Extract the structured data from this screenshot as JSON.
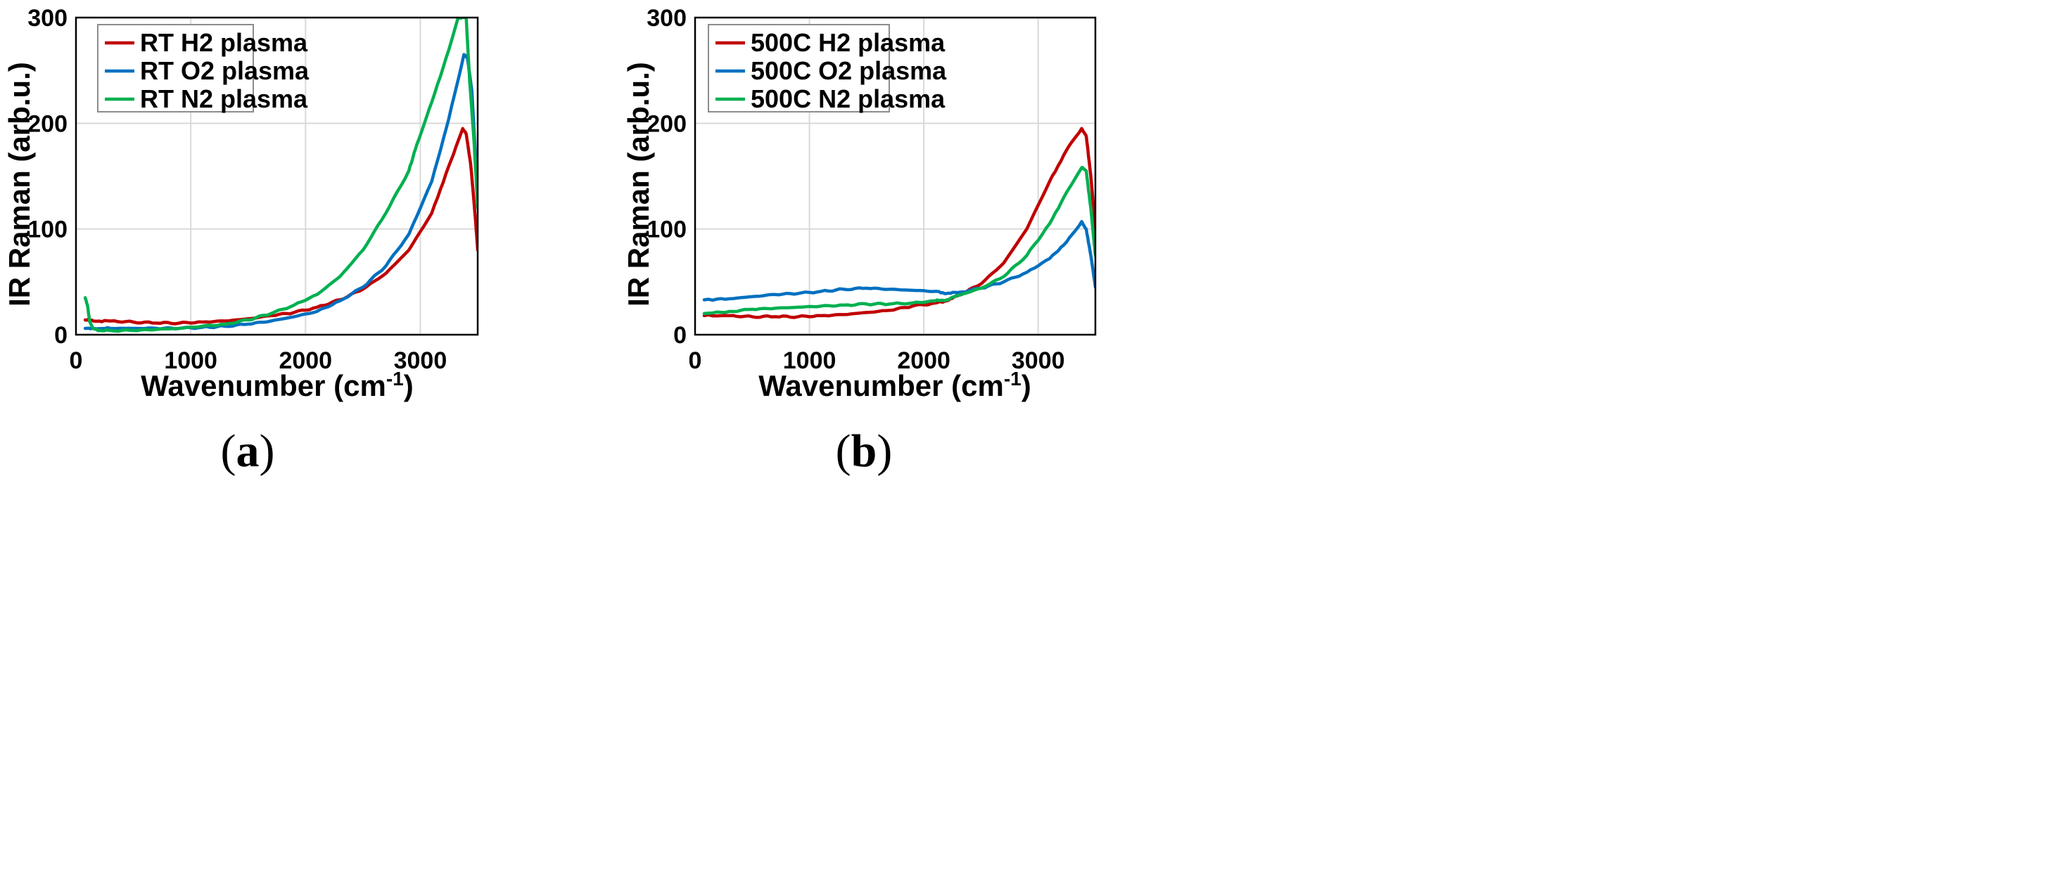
{
  "colors": {
    "h2": "#c00000",
    "o2": "#0070c0",
    "n2": "#00b050"
  },
  "chart_data": [
    {
      "type": "line",
      "panel_label": "a",
      "xlabel": "Wavenumber (cm",
      "xlabel_sup": "-1",
      "xlabel_close": ")",
      "ylabel": "IR Raman (arb.u.)",
      "xlim": [
        0,
        3500
      ],
      "ylim": [
        0,
        300
      ],
      "xticks": [
        0,
        1000,
        2000,
        3000
      ],
      "yticks": [
        0,
        100,
        200,
        300
      ],
      "grid": true,
      "legend_position": "top-left",
      "series": [
        {
          "name": "RT H2 plasma",
          "color_key": "h2",
          "x": [
            80,
            150,
            300,
            500,
            700,
            900,
            1100,
            1300,
            1500,
            1700,
            1900,
            2100,
            2300,
            2500,
            2700,
            2900,
            3100,
            3250,
            3370,
            3400,
            3440,
            3480,
            3500
          ],
          "y": [
            14,
            13,
            13,
            12,
            11,
            11,
            12,
            13,
            15,
            18,
            21,
            26,
            33,
            43,
            58,
            80,
            115,
            160,
            195,
            190,
            160,
            110,
            80
          ]
        },
        {
          "name": "RT O2 plasma",
          "color_key": "o2",
          "x": [
            80,
            150,
            300,
            500,
            700,
            900,
            1100,
            1300,
            1500,
            1700,
            1900,
            2100,
            2300,
            2500,
            2700,
            2900,
            3100,
            3250,
            3380,
            3410,
            3450,
            3490,
            3500
          ],
          "y": [
            6,
            6,
            6,
            6,
            6,
            6,
            7,
            8,
            10,
            13,
            17,
            22,
            32,
            45,
            65,
            95,
            145,
            205,
            265,
            262,
            230,
            150,
            130
          ]
        },
        {
          "name": "RT N2 plasma",
          "color_key": "n2",
          "x": [
            80,
            100,
            120,
            150,
            200,
            300,
            500,
            700,
            900,
            1100,
            1300,
            1500,
            1700,
            1900,
            2100,
            2300,
            2500,
            2700,
            2900,
            2970,
            3100,
            3250,
            3330,
            3360,
            3400,
            3430,
            3470,
            3500
          ],
          "y": [
            35,
            28,
            12,
            6,
            4,
            4,
            4,
            5,
            6,
            8,
            10,
            14,
            20,
            28,
            38,
            55,
            80,
            115,
            155,
            180,
            220,
            270,
            300,
            300,
            300,
            240,
            180,
            120
          ]
        }
      ]
    },
    {
      "type": "line",
      "panel_label": "b",
      "xlabel": "Wavenumber (cm",
      "xlabel_sup": "-1",
      "xlabel_close": ")",
      "ylabel": "IR Raman (arb.u.)",
      "xlim": [
        0,
        3500
      ],
      "ylim": [
        0,
        300
      ],
      "xticks": [
        0,
        1000,
        2000,
        3000
      ],
      "yticks": [
        0,
        100,
        200,
        300
      ],
      "grid": true,
      "legend_position": "top-left",
      "series": [
        {
          "name": "500C H2 plasma",
          "color_key": "h2",
          "x": [
            80,
            300,
            500,
            700,
            900,
            1100,
            1300,
            1500,
            1700,
            1900,
            2100,
            2200,
            2300,
            2500,
            2700,
            2900,
            3100,
            3250,
            3380,
            3420,
            3460,
            3500
          ],
          "y": [
            18,
            18,
            17,
            17,
            17,
            18,
            19,
            21,
            23,
            27,
            30,
            32,
            37,
            48,
            68,
            100,
            145,
            175,
            195,
            188,
            150,
            100
          ]
        },
        {
          "name": "500C O2 plasma",
          "color_key": "o2",
          "x": [
            80,
            300,
            500,
            700,
            900,
            1100,
            1300,
            1500,
            1700,
            1900,
            2100,
            2200,
            2300,
            2500,
            2700,
            2900,
            3100,
            3250,
            3380,
            3420,
            3460,
            3500
          ],
          "y": [
            33,
            34,
            36,
            38,
            39,
            41,
            43,
            44,
            43,
            42,
            41,
            39,
            40,
            44,
            50,
            59,
            72,
            88,
            107,
            100,
            75,
            45
          ]
        },
        {
          "name": "500C N2 plasma",
          "color_key": "n2",
          "x": [
            80,
            300,
            500,
            700,
            900,
            1100,
            1300,
            1500,
            1700,
            1900,
            2100,
            2200,
            2300,
            2500,
            2700,
            2900,
            3100,
            3250,
            3380,
            3420,
            3460,
            3500
          ],
          "y": [
            20,
            22,
            24,
            25,
            26,
            27,
            28,
            29,
            29,
            30,
            32,
            33,
            37,
            44,
            55,
            75,
            105,
            135,
            158,
            155,
            120,
            75
          ]
        }
      ]
    }
  ]
}
